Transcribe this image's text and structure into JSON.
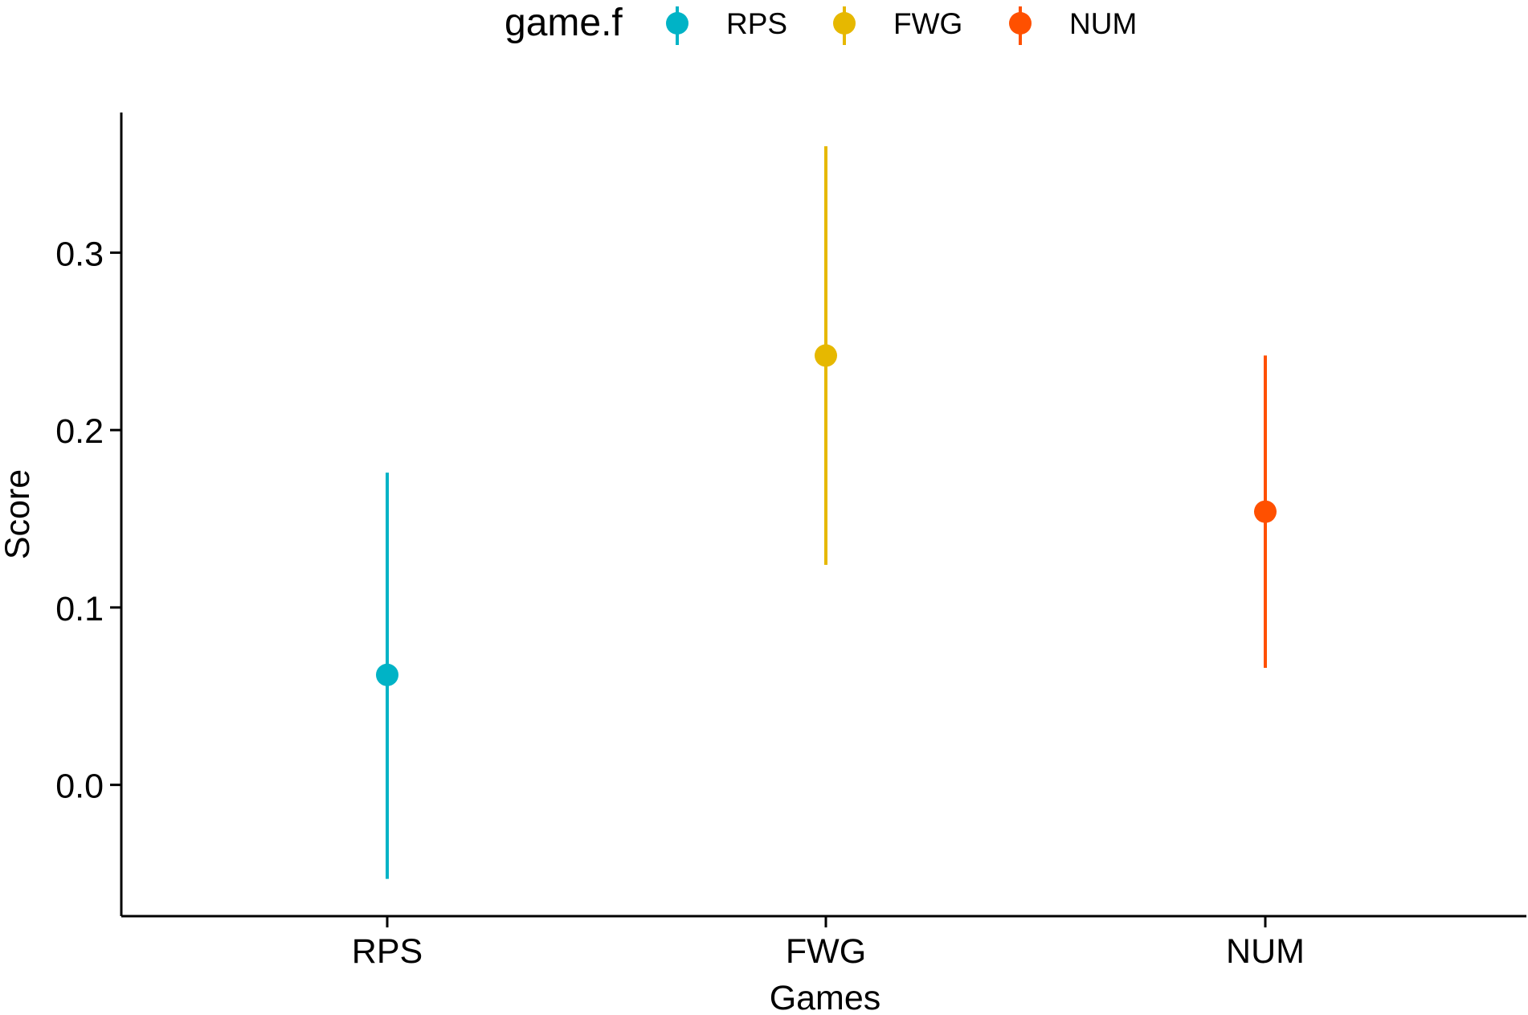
{
  "chart_data": {
    "type": "scatter",
    "subtype": "point-range",
    "title": "",
    "xlabel": "Games",
    "ylabel": "Score",
    "categories": [
      "RPS",
      "FWG",
      "NUM"
    ],
    "ylim": [
      -0.074,
      0.379
    ],
    "yticks": [
      0.0,
      0.1,
      0.2,
      0.3
    ],
    "ytick_labels": [
      "0.0",
      "0.1",
      "0.2",
      "0.3"
    ],
    "grid": false,
    "legend": {
      "title": "game.f",
      "position": "top",
      "entries": [
        "RPS",
        "FWG",
        "NUM"
      ]
    },
    "series": [
      {
        "name": "RPS",
        "category": "RPS",
        "value": 0.062,
        "lower": -0.053,
        "upper": 0.176,
        "color": "#00B3C6"
      },
      {
        "name": "FWG",
        "category": "FWG",
        "value": 0.242,
        "lower": 0.124,
        "upper": 0.36,
        "color": "#E6B800"
      },
      {
        "name": "NUM",
        "category": "NUM",
        "value": 0.154,
        "lower": 0.066,
        "upper": 0.242,
        "color": "#FF5000"
      }
    ]
  }
}
